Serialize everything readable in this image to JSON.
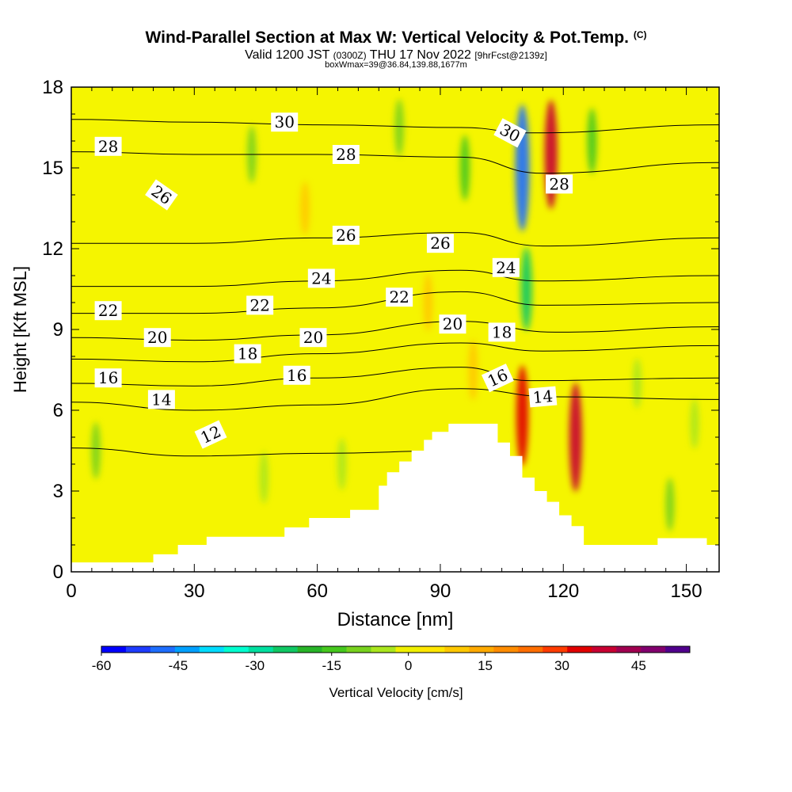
{
  "title": {
    "main": "Wind-Parallel Section at Max W: Vertical Velocity & Pot.Temp.",
    "copyright": "(C)",
    "valid_prefix": "Valid 1200 JST",
    "valid_utc": "(0300Z)",
    "valid_date": "THU 17 Nov 2022",
    "forecast": "[9hrFcst@2139z]",
    "box_info": "boxWmax=39@36.84,139.88,1677m"
  },
  "colors": {
    "background": "#f5f500",
    "terrain": "#ffffff",
    "contour": "#000000"
  },
  "chart_data": {
    "type": "heatmap",
    "xlabel": "Distance [nm]",
    "ylabel": "Height [Kft MSL]",
    "xlim": [
      0,
      158
    ],
    "ylim": [
      0,
      18
    ],
    "x_ticks": [
      0,
      30,
      60,
      90,
      120,
      150
    ],
    "y_ticks": [
      0,
      3,
      6,
      9,
      12,
      15,
      18
    ],
    "colorbar": {
      "label": "Vertical Velocity [cm/s]",
      "ticks": [
        -60,
        -45,
        -30,
        -15,
        0,
        15,
        30,
        45
      ],
      "min": -60,
      "max": 55,
      "step": 5,
      "colors": [
        "#0000ff",
        "#1e3cff",
        "#1e6eff",
        "#00a0ff",
        "#00dcff",
        "#00ffd0",
        "#00e0a0",
        "#10c864",
        "#28b428",
        "#46c81e",
        "#78d21e",
        "#aae61e",
        "#f0f000",
        "#ffe600",
        "#ffc800",
        "#ffaa00",
        "#ff8c00",
        "#ff6e00",
        "#ff3c00",
        "#e10000",
        "#c80032",
        "#a00050",
        "#82006e",
        "#50008c"
      ]
    },
    "terrain_profile": [
      [
        0,
        0.35
      ],
      [
        20,
        0.35
      ],
      [
        20,
        0.65
      ],
      [
        26,
        0.65
      ],
      [
        26,
        1.0
      ],
      [
        33,
        1.0
      ],
      [
        33,
        1.3
      ],
      [
        52,
        1.3
      ],
      [
        52,
        1.65
      ],
      [
        58,
        1.65
      ],
      [
        58,
        2.0
      ],
      [
        68,
        2.0
      ],
      [
        68,
        2.3
      ],
      [
        75,
        2.3
      ],
      [
        75,
        3.2
      ],
      [
        77,
        3.2
      ],
      [
        77,
        3.7
      ],
      [
        80,
        3.7
      ],
      [
        80,
        4.1
      ],
      [
        83,
        4.1
      ],
      [
        83,
        4.5
      ],
      [
        86,
        4.5
      ],
      [
        86,
        4.9
      ],
      [
        88,
        4.9
      ],
      [
        88,
        5.2
      ],
      [
        92,
        5.2
      ],
      [
        92,
        5.5
      ],
      [
        104,
        5.5
      ],
      [
        104,
        4.8
      ],
      [
        107,
        4.8
      ],
      [
        107,
        4.3
      ],
      [
        110,
        4.3
      ],
      [
        110,
        3.5
      ],
      [
        113,
        3.5
      ],
      [
        113,
        3.0
      ],
      [
        116,
        3.0
      ],
      [
        116,
        2.6
      ],
      [
        119,
        2.6
      ],
      [
        119,
        2.1
      ],
      [
        122,
        2.1
      ],
      [
        122,
        1.7
      ],
      [
        125,
        1.7
      ],
      [
        125,
        1.0
      ],
      [
        143,
        1.0
      ],
      [
        143,
        1.25
      ],
      [
        155,
        1.25
      ],
      [
        155,
        1.0
      ],
      [
        158,
        1.0
      ]
    ],
    "velocity_features": [
      {
        "x": 110,
        "y": 15.0,
        "value": -50
      },
      {
        "x": 111,
        "y": 10.5,
        "value": -25
      },
      {
        "x": 117,
        "y": 15.5,
        "value": 40
      },
      {
        "x": 110,
        "y": 5.8,
        "value": 35
      },
      {
        "x": 123,
        "y": 5.0,
        "value": 40
      },
      {
        "x": 127,
        "y": 16.0,
        "value": -15
      },
      {
        "x": 96,
        "y": 15.0,
        "value": -15
      },
      {
        "x": 80,
        "y": 16.5,
        "value": -10
      },
      {
        "x": 44,
        "y": 15.5,
        "value": -10
      },
      {
        "x": 6,
        "y": 4.5,
        "value": -10
      },
      {
        "x": 47,
        "y": 3.5,
        "value": -7
      },
      {
        "x": 66,
        "y": 4.0,
        "value": -7
      },
      {
        "x": 57,
        "y": 13.5,
        "value": 8
      },
      {
        "x": 87,
        "y": 10.0,
        "value": 10
      },
      {
        "x": 98,
        "y": 7.5,
        "value": 12
      },
      {
        "x": 146,
        "y": 2.5,
        "value": -8
      },
      {
        "x": 152,
        "y": 5.5,
        "value": -6
      },
      {
        "x": 138,
        "y": 7.0,
        "value": -6
      }
    ],
    "theta_contours": [
      {
        "value": 12,
        "points": [
          [
            0,
            4.6
          ],
          [
            30,
            4.3
          ],
          [
            60,
            4.4
          ],
          [
            95,
            4.5
          ],
          [
            105,
            4.3
          ]
        ]
      },
      {
        "value": 14,
        "points": [
          [
            0,
            6.3
          ],
          [
            30,
            6.0
          ],
          [
            60,
            6.2
          ],
          [
            95,
            6.8
          ],
          [
            118,
            6.5
          ],
          [
            158,
            6.4
          ]
        ]
      },
      {
        "value": 16,
        "points": [
          [
            0,
            7.0
          ],
          [
            30,
            6.9
          ],
          [
            60,
            7.2
          ],
          [
            95,
            7.6
          ],
          [
            112,
            7.1
          ],
          [
            158,
            7.2
          ]
        ]
      },
      {
        "value": 18,
        "points": [
          [
            0,
            7.9
          ],
          [
            30,
            7.8
          ],
          [
            60,
            8.1
          ],
          [
            95,
            8.5
          ],
          [
            115,
            8.2
          ],
          [
            158,
            8.4
          ]
        ]
      },
      {
        "value": 20,
        "points": [
          [
            0,
            8.7
          ],
          [
            30,
            8.6
          ],
          [
            60,
            8.8
          ],
          [
            95,
            9.3
          ],
          [
            118,
            8.9
          ],
          [
            158,
            9.1
          ]
        ]
      },
      {
        "value": 22,
        "points": [
          [
            0,
            9.6
          ],
          [
            30,
            9.6
          ],
          [
            60,
            9.8
          ],
          [
            95,
            10.4
          ],
          [
            115,
            9.9
          ],
          [
            158,
            10.0
          ]
        ]
      },
      {
        "value": 24,
        "points": [
          [
            0,
            10.6
          ],
          [
            30,
            10.6
          ],
          [
            60,
            10.8
          ],
          [
            95,
            11.2
          ],
          [
            114,
            10.8
          ],
          [
            158,
            11.0
          ]
        ]
      },
      {
        "value": 26,
        "points": [
          [
            0,
            12.2
          ],
          [
            30,
            12.2
          ],
          [
            60,
            12.4
          ],
          [
            95,
            12.6
          ],
          [
            115,
            12.1
          ],
          [
            158,
            12.4
          ]
        ]
      },
      {
        "value": 28,
        "points": [
          [
            0,
            15.6
          ],
          [
            30,
            15.5
          ],
          [
            60,
            15.5
          ],
          [
            95,
            15.4
          ],
          [
            115,
            14.8
          ],
          [
            158,
            15.2
          ]
        ]
      },
      {
        "value": 30,
        "points": [
          [
            0,
            16.8
          ],
          [
            30,
            16.7
          ],
          [
            60,
            16.6
          ],
          [
            95,
            16.5
          ],
          [
            112,
            16.3
          ],
          [
            158,
            16.6
          ]
        ]
      }
    ],
    "contour_labels": [
      {
        "text": "30",
        "x": 52,
        "y": 16.7,
        "angle": 0
      },
      {
        "text": "28",
        "x": 9,
        "y": 15.8,
        "angle": 0
      },
      {
        "text": "28",
        "x": 67,
        "y": 15.5,
        "angle": 0
      },
      {
        "text": "30",
        "x": 107,
        "y": 16.3,
        "angle": 28
      },
      {
        "text": "28",
        "x": 119,
        "y": 14.4,
        "angle": 0
      },
      {
        "text": "26",
        "x": 22,
        "y": 14.0,
        "angle": 35
      },
      {
        "text": "26",
        "x": 67,
        "y": 12.5,
        "angle": 0
      },
      {
        "text": "26",
        "x": 90,
        "y": 12.2,
        "angle": 0
      },
      {
        "text": "24",
        "x": 61,
        "y": 10.9,
        "angle": 0
      },
      {
        "text": "24",
        "x": 106,
        "y": 11.3,
        "angle": 0
      },
      {
        "text": "22",
        "x": 9,
        "y": 9.7,
        "angle": 0
      },
      {
        "text": "22",
        "x": 46,
        "y": 9.9,
        "angle": 0
      },
      {
        "text": "22",
        "x": 80,
        "y": 10.2,
        "angle": 0
      },
      {
        "text": "20",
        "x": 21,
        "y": 8.7,
        "angle": 0
      },
      {
        "text": "20",
        "x": 59,
        "y": 8.7,
        "angle": 0
      },
      {
        "text": "20",
        "x": 93,
        "y": 9.2,
        "angle": 0
      },
      {
        "text": "18",
        "x": 43,
        "y": 8.1,
        "angle": 0
      },
      {
        "text": "18",
        "x": 105,
        "y": 8.9,
        "angle": 0
      },
      {
        "text": "16",
        "x": 9,
        "y": 7.2,
        "angle": 0
      },
      {
        "text": "16",
        "x": 55,
        "y": 7.3,
        "angle": 0
      },
      {
        "text": "16",
        "x": 104,
        "y": 7.2,
        "angle": -25
      },
      {
        "text": "14",
        "x": 22,
        "y": 6.4,
        "angle": 0
      },
      {
        "text": "14",
        "x": 115,
        "y": 6.5,
        "angle": -5
      },
      {
        "text": "12",
        "x": 34,
        "y": 5.1,
        "angle": -25
      }
    ]
  }
}
